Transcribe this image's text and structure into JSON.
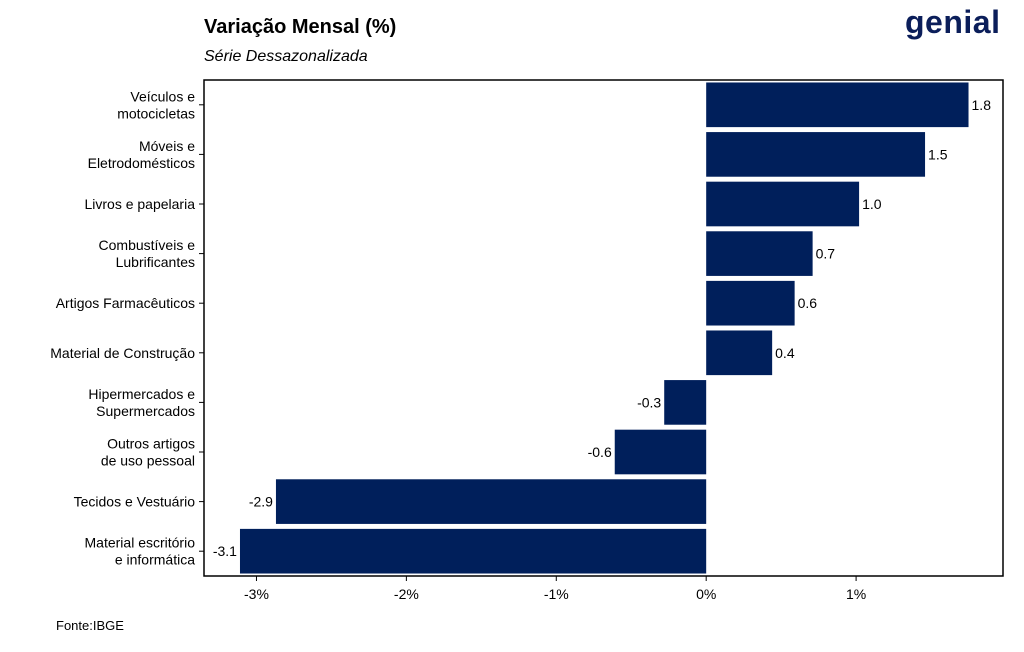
{
  "header": {
    "title": "Variação Mensal (%)",
    "subtitle": "Série Dessazonalizada",
    "logo_text": "genial"
  },
  "footer": {
    "source": "Fonte:IBGE"
  },
  "colors": {
    "bar": "#001f5b",
    "logo": "#0b1e5a",
    "logo_accent": "#2aa8e0"
  },
  "chart_data": {
    "type": "bar",
    "orientation": "horizontal",
    "title": "Variação Mensal (%)",
    "subtitle": "Série Dessazonalizada",
    "categories": [
      [
        "Veículos e",
        "motocicletas"
      ],
      [
        "Móveis e",
        "Eletrodomésticos"
      ],
      [
        "Livros e papelaria"
      ],
      [
        "Combustíveis e",
        "Lubrificantes"
      ],
      [
        "Artigos Farmacêuticos"
      ],
      [
        "Material de Construção"
      ],
      [
        "Hipermercados e",
        "Supermercados"
      ],
      [
        "Outros artigos",
        "de uso pessoal"
      ],
      [
        "Tecidos e Vestuário"
      ],
      [
        "Material escritório",
        "e informática"
      ]
    ],
    "values": [
      1.75,
      1.46,
      1.02,
      0.71,
      0.59,
      0.44,
      -0.28,
      -0.61,
      -2.87,
      -3.11
    ],
    "data_labels": [
      "1.8",
      "1.5",
      "1.0",
      "0.7",
      "0.6",
      "0.4",
      "-0.3",
      "-0.6",
      "-2.9",
      "-3.1"
    ],
    "xlim": [
      -3.35,
      1.98
    ],
    "xticks": [
      -3,
      -2,
      -1,
      0,
      1
    ],
    "xtick_labels": [
      "-3%",
      "-2%",
      "-1%",
      "0%",
      "1%"
    ],
    "grid": false,
    "legend": "none"
  }
}
